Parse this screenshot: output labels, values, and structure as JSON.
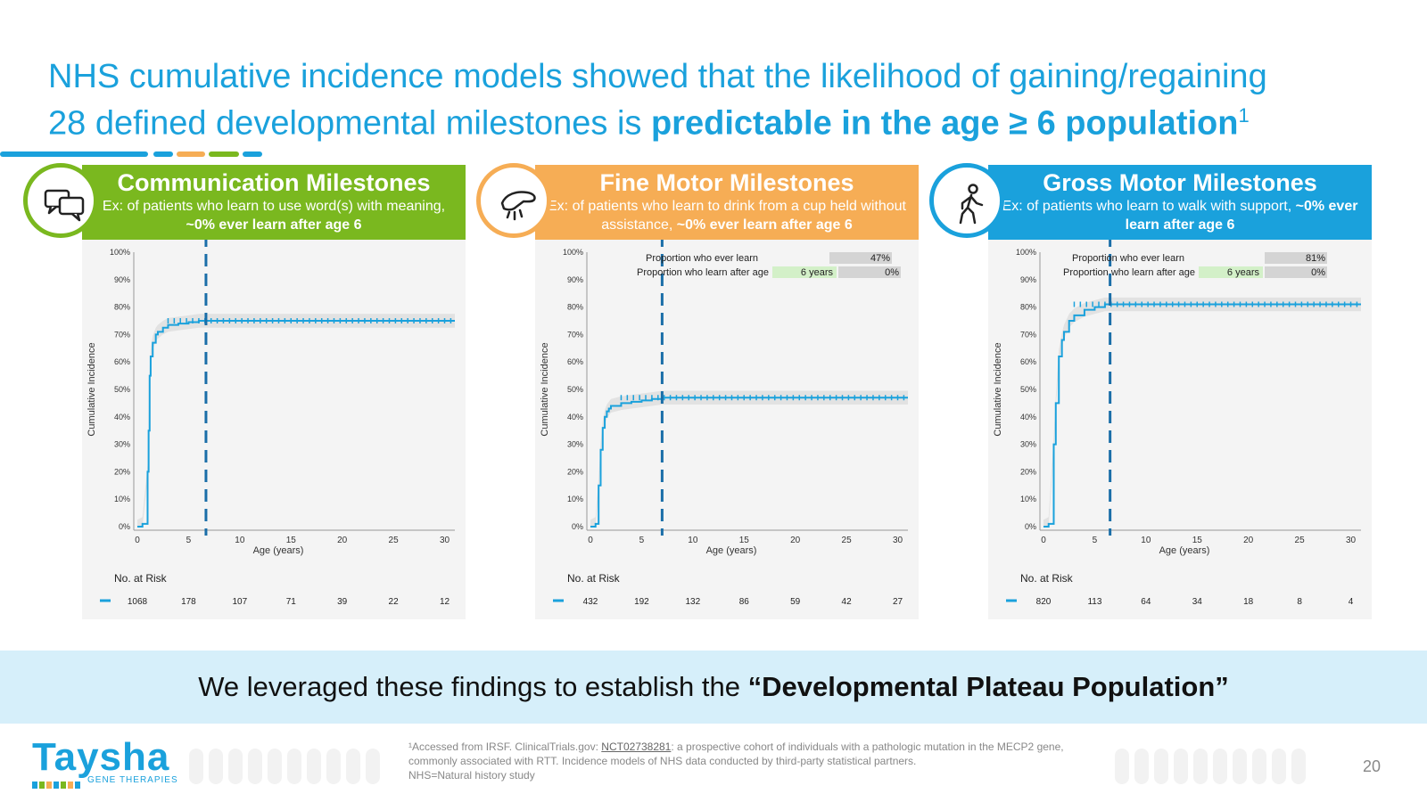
{
  "title": {
    "line1": "NHS cumulative incidence models showed that the likelihood of gaining/regaining",
    "line2_plain": "28 defined developmental milestones is ",
    "line2_bold": "predictable in the age ≥ 6 population",
    "sup": "1"
  },
  "colors": {
    "blue": "#1aa1dc",
    "green": "#7ab81f",
    "orange": "#f6ad55",
    "dark_dash": "#1a6ea8"
  },
  "panels": [
    {
      "key": "communication",
      "color": "#7ab81f",
      "icon": "speech-bubbles-icon",
      "title": "Communication Milestones",
      "sub_plain": "Ex: of patients who learn to use word(s) with meaning, ",
      "sub_bold": "~0% ever learn after age 6"
    },
    {
      "key": "finemotor",
      "color": "#f6ad55",
      "icon": "hand-drinking-icon",
      "title": "Fine Motor Milestones",
      "sub_plain": "Ex: of patients who learn to drink from a cup held without assistance, ",
      "sub_bold": "~0% ever learn after age 6"
    },
    {
      "key": "grossmotor",
      "color": "#1aa1dc",
      "icon": "walking-person-icon",
      "title": "Gross Motor Milestones",
      "sub_plain": "Ex: of patients who learn to walk with support, ",
      "sub_bold": "~0% ever learn after age 6"
    }
  ],
  "chart_data": [
    {
      "type": "line",
      "title": "",
      "xlabel": "Age (years)",
      "ylabel": "Cumulative Incidence",
      "xlim": [
        0,
        31
      ],
      "ylim": [
        0,
        1
      ],
      "x_ticks": [
        0,
        5,
        10,
        15,
        20,
        25,
        30
      ],
      "y_ticks": [
        "0%",
        "10%",
        "20%",
        "30%",
        "40%",
        "50%",
        "60%",
        "70%",
        "80%",
        "90%",
        "100%"
      ],
      "vline_x": 6.7,
      "series": [
        {
          "x": [
            0,
            0.5,
            1.0,
            1.1,
            1.2,
            1.3,
            1.5,
            1.8,
            2.0,
            2.5,
            3.0,
            4.0,
            5.0,
            6.0,
            8.0,
            10,
            15,
            20,
            25,
            31
          ],
          "y": [
            0.0,
            0.01,
            0.2,
            0.35,
            0.55,
            0.62,
            0.67,
            0.7,
            0.71,
            0.725,
            0.735,
            0.74,
            0.745,
            0.75,
            0.75,
            0.75,
            0.75,
            0.75,
            0.75,
            0.75
          ]
        }
      ],
      "risk_label": "No. at Risk",
      "risk_values": [
        "1068",
        "178",
        "107",
        "71",
        "39",
        "22",
        "12"
      ],
      "risk_table": null
    },
    {
      "type": "line",
      "title": "",
      "xlabel": "Age (years)",
      "ylabel": "Cumulative Incidence",
      "xlim": [
        0,
        31
      ],
      "ylim": [
        0,
        1
      ],
      "x_ticks": [
        0,
        5,
        10,
        15,
        20,
        25,
        30
      ],
      "y_ticks": [
        "0%",
        "10%",
        "20%",
        "30%",
        "40%",
        "50%",
        "60%",
        "70%",
        "80%",
        "90%",
        "100%"
      ],
      "vline_x": 7,
      "series": [
        {
          "x": [
            0,
            0.5,
            0.8,
            1.0,
            1.2,
            1.4,
            1.6,
            1.8,
            2.0,
            3.0,
            4.0,
            5.0,
            6.0,
            7.0,
            10,
            12,
            15,
            20,
            25,
            31
          ],
          "y": [
            0.0,
            0.01,
            0.15,
            0.28,
            0.36,
            0.4,
            0.42,
            0.43,
            0.44,
            0.45,
            0.455,
            0.46,
            0.465,
            0.47,
            0.47,
            0.47,
            0.47,
            0.47,
            0.47,
            0.47
          ]
        }
      ],
      "risk_label": "No. at Risk",
      "risk_values": [
        "432",
        "192",
        "132",
        "86",
        "59",
        "42",
        "27"
      ],
      "risk_table": {
        "row1_label": "Proportion who ever learn",
        "row1_value": "47%",
        "row2_label": "Proportion who learn after age",
        "row2_age": "6 years",
        "row2_value": "0%"
      }
    },
    {
      "type": "line",
      "title": "",
      "xlabel": "Age (years)",
      "ylabel": "Cumulative Incidence",
      "xlim": [
        0,
        31
      ],
      "ylim": [
        0,
        1
      ],
      "x_ticks": [
        0,
        5,
        10,
        15,
        20,
        25,
        30
      ],
      "y_ticks": [
        "0%",
        "10%",
        "20%",
        "30%",
        "40%",
        "50%",
        "60%",
        "70%",
        "80%",
        "90%",
        "100%"
      ],
      "vline_x": 6.5,
      "series": [
        {
          "x": [
            0,
            0.5,
            1.0,
            1.2,
            1.5,
            1.8,
            2.0,
            2.5,
            3.0,
            4.0,
            5.0,
            6.0,
            8.0,
            10,
            15,
            20,
            25,
            31
          ],
          "y": [
            0.0,
            0.01,
            0.3,
            0.45,
            0.62,
            0.68,
            0.71,
            0.75,
            0.77,
            0.79,
            0.8,
            0.81,
            0.81,
            0.81,
            0.81,
            0.81,
            0.81,
            0.81
          ]
        }
      ],
      "risk_label": "No. at Risk",
      "risk_values": [
        "820",
        "113",
        "64",
        "34",
        "18",
        "8",
        "4"
      ],
      "risk_table": {
        "row1_label": "Proportion who ever learn",
        "row1_value": "81%",
        "row2_label": "Proportion who learn after age",
        "row2_age": "6 years",
        "row2_value": "0%"
      }
    }
  ],
  "bottom": {
    "plain": "We leveraged these findings to establish the ",
    "bold": "“Developmental Plateau Population”"
  },
  "logo": {
    "name": "Taysha",
    "sub": "GENE THERAPIES"
  },
  "footnote": {
    "pre": "¹Accessed from IRSF. ClinicalTrials.gov: ",
    "link": "NCT02738281",
    "post": ": a prospective cohort of individuals with a pathologic mutation in the MECP2 gene, commonly associated with RTT. Incidence models of NHS data conducted by third-party statistical partners.",
    "line3": "NHS=Natural history study"
  },
  "page_number": "20"
}
